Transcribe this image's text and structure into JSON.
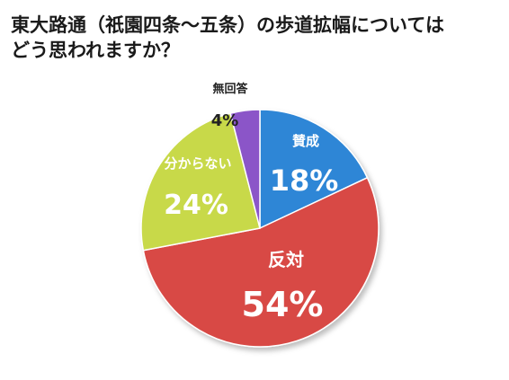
{
  "title_lines": [
    "東大路通（祇園四条～五条）の歩道拡幅については",
    "どう思われますか？"
  ],
  "chart_data": {
    "type": "pie",
    "title": "東大路通（祇園四条～五条）の歩道拡幅については どう思われますか？",
    "start": "12 o'clock",
    "direction": "clockwise",
    "slices": [
      {
        "label": "賛成",
        "value": 18,
        "value_label": "18%",
        "color": "#2E86D6"
      },
      {
        "label": "反対",
        "value": 54,
        "value_label": "54%",
        "color": "#D84A45"
      },
      {
        "label": "分からない",
        "value": 24,
        "value_label": "24%",
        "color": "#C8D94A"
      },
      {
        "label": "無回答",
        "value": 4,
        "value_label": "4%",
        "color": "#8B55C8"
      }
    ]
  }
}
